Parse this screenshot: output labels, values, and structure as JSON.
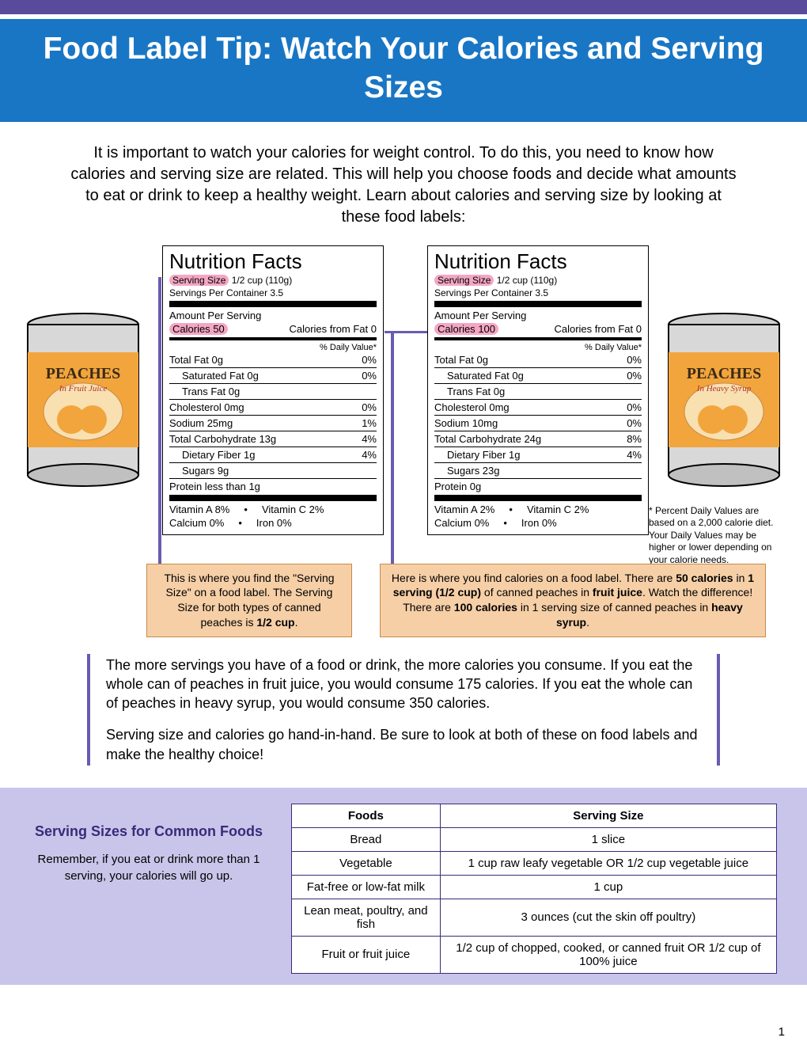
{
  "colors": {
    "purple_bar": "#5a4a9c",
    "title_band": "#1976c4",
    "callout_bg": "#f6cfa7",
    "callout_border": "#c98a4a",
    "highlight_pink": "#f4a6c3",
    "footer_band": "#c9c5ea",
    "accent_purple": "#3a2a7a",
    "body_border": "#6a5bb0"
  },
  "title": "Food Label Tip: Watch Your Calories and Serving Sizes",
  "intro": "It is important to watch your calories for weight control. To do this, you need to know how calories and serving size are related. This will help you choose foods and decide what amounts to eat or drink to keep a healthy weight. Learn about calories and serving size by looking at these food labels:",
  "can_left_product": "PEACHES",
  "can_left_variant": "In Fruit Juice",
  "can_right_product": "PEACHES",
  "can_right_variant": "In Heavy Syrup",
  "nutrition_left": {
    "heading": "Nutrition Facts",
    "serving_label": "Serving Size",
    "serving_value": "1/2 cup (110g)",
    "servings_per": "Servings Per Container 3.5",
    "amount_per": "Amount Per Serving",
    "calories_label": "Calories",
    "calories_value": "50",
    "calories_fat": "Calories from Fat 0",
    "dv": "% Daily Value*",
    "rows": [
      {
        "name": "Total Fat 0g",
        "dv": "0%"
      },
      {
        "name": "Saturated Fat 0g",
        "dv": "0%",
        "sub": true
      },
      {
        "name": "Trans Fat 0g",
        "sub": true
      },
      {
        "name": "Cholesterol 0mg",
        "dv": "0%"
      },
      {
        "name": "Sodium 25mg",
        "dv": "1%"
      },
      {
        "name": "Total Carbohydrate 13g",
        "dv": "4%"
      },
      {
        "name": "Dietary Fiber 1g",
        "dv": "4%",
        "sub": true
      },
      {
        "name": "Sugars 9g",
        "sub": true
      },
      {
        "name": "Protein less than 1g"
      }
    ],
    "vit_a": "Vitamin A 8%",
    "vit_c": "Vitamin C 2%",
    "calcium": "Calcium 0%",
    "iron": "Iron 0%"
  },
  "nutrition_right": {
    "heading": "Nutrition Facts",
    "serving_label": "Serving Size",
    "serving_value": "1/2 cup (110g)",
    "servings_per": "Servings Per Container 3.5",
    "amount_per": "Amount Per Serving",
    "calories_label": "Calories",
    "calories_value": "100",
    "calories_fat": "Calories from Fat 0",
    "dv": "% Daily Value*",
    "rows": [
      {
        "name": "Total Fat 0g",
        "dv": "0%"
      },
      {
        "name": "Saturated Fat 0g",
        "dv": "0%",
        "sub": true
      },
      {
        "name": "Trans Fat 0g",
        "sub": true
      },
      {
        "name": "Cholesterol 0mg",
        "dv": "0%"
      },
      {
        "name": "Sodium 10mg",
        "dv": "0%"
      },
      {
        "name": "Total Carbohydrate 24g",
        "dv": "8%"
      },
      {
        "name": "Dietary Fiber 1g",
        "dv": "4%",
        "sub": true
      },
      {
        "name": "Sugars 23g",
        "sub": true
      },
      {
        "name": "Protein 0g"
      }
    ],
    "vit_a": "Vitamin A 2%",
    "vit_c": "Vitamin C 2%",
    "calcium": "Calcium 0%",
    "iron": "Iron 0%"
  },
  "dv_footnote": "* Percent Daily Values are based on a 2,000 calorie diet. Your Daily Values may be higher or lower depending on your calorie needs.",
  "callout_left_html": "This is where you find the \"Serving Size\" on a food label. The Serving Size for both types of canned peaches is <b>1/2 cup</b>.",
  "callout_right_html": "Here is where you find calories on a food label. There are <b>50 calories</b> in <b>1 serving (1/2 cup)</b> of canned peaches in <b>fruit juice</b>. Watch the difference! There are <b>100 calories</b> in 1 serving size of canned peaches in <b>heavy syrup</b>.",
  "body_p1": "The more servings you have of a food or drink, the more calories you consume. If you eat the whole can of peaches in fruit juice, you would consume 175 calories. If you eat the whole can of peaches in heavy syrup, you would consume 350 calories.",
  "body_p2": "Serving size and calories go hand-in-hand. Be sure to look at both of these on food labels and make the healthy choice!",
  "footer_heading": "Serving Sizes for Common Foods",
  "footer_note": "Remember, if you eat or drink more than 1 serving, your calories will go up.",
  "table": {
    "col1": "Foods",
    "col2": "Serving Size",
    "rows": [
      {
        "food": "Bread",
        "size": "1 slice"
      },
      {
        "food": "Vegetable",
        "size": "1 cup raw leafy vegetable OR 1/2 cup vegetable juice"
      },
      {
        "food": "Fat-free or low-fat milk",
        "size": "1 cup"
      },
      {
        "food": "Lean meat, poultry, and fish",
        "size": "3 ounces (cut the skin off poultry)"
      },
      {
        "food": "Fruit or fruit juice",
        "size": "1/2 cup of chopped, cooked, or canned fruit OR 1/2 cup of 100% juice"
      }
    ]
  },
  "page_number": "1"
}
